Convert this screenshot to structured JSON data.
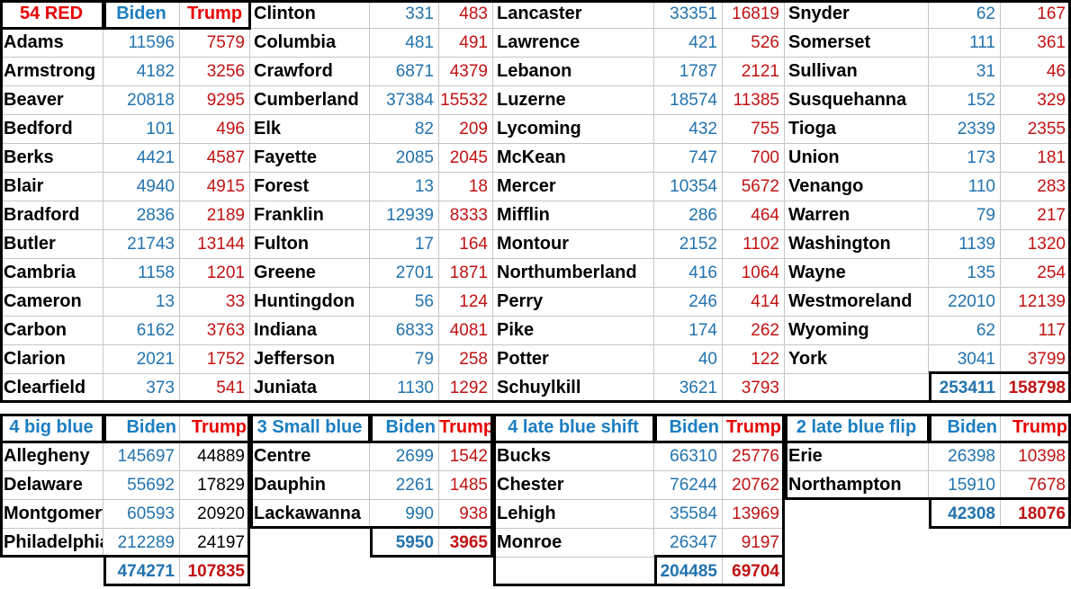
{
  "styles": {
    "accent_blue_header": "#1b7ec2",
    "accent_blue_value": "#2273ae",
    "accent_red_header": "#e80000",
    "accent_red_value": "#c11212",
    "big_blue_trump_value_color": "#000000",
    "gridline_gray": "#c6c6c6",
    "thick_border_color": "#000000"
  },
  "top_table": {
    "header": {
      "title": "54 RED",
      "biden": "Biden",
      "trump": "Trump"
    },
    "groups": [
      {
        "rows": [
          [
            "Adams",
            "11596",
            "7579"
          ],
          [
            "Armstrong",
            "4182",
            "3256"
          ],
          [
            "Beaver",
            "20818",
            "9295"
          ],
          [
            "Bedford",
            "101",
            "496"
          ],
          [
            "Berks",
            "4421",
            "4587"
          ],
          [
            "Blair",
            "4940",
            "4915"
          ],
          [
            "Bradford",
            "2836",
            "2189"
          ],
          [
            "Butler",
            "21743",
            "13144"
          ],
          [
            "Cambria",
            "1158",
            "1201"
          ],
          [
            "Cameron",
            "13",
            "33"
          ],
          [
            "Carbon",
            "6162",
            "3763"
          ],
          [
            "Clarion",
            "2021",
            "1752"
          ],
          [
            "Clearfield",
            "373",
            "541"
          ]
        ]
      },
      {
        "rows": [
          [
            "Clinton",
            "331",
            "483"
          ],
          [
            "Columbia",
            "481",
            "491"
          ],
          [
            "Crawford",
            "6871",
            "4379"
          ],
          [
            "Cumberland",
            "37384",
            "15532"
          ],
          [
            "Elk",
            "82",
            "209"
          ],
          [
            "Fayette",
            "2085",
            "2045"
          ],
          [
            "Forest",
            "13",
            "18"
          ],
          [
            "Franklin",
            "12939",
            "8333"
          ],
          [
            "Fulton",
            "17",
            "164"
          ],
          [
            "Greene",
            "2701",
            "1871"
          ],
          [
            "Huntingdon",
            "56",
            "124"
          ],
          [
            "Indiana",
            "6833",
            "4081"
          ],
          [
            "Jefferson",
            "79",
            "258"
          ],
          [
            "Juniata",
            "1130",
            "1292"
          ]
        ]
      },
      {
        "rows": [
          [
            "Lancaster",
            "33351",
            "16819"
          ],
          [
            "Lawrence",
            "421",
            "526"
          ],
          [
            "Lebanon",
            "1787",
            "2121"
          ],
          [
            "Luzerne",
            "18574",
            "11385"
          ],
          [
            "Lycoming",
            "432",
            "755"
          ],
          [
            "McKean",
            "747",
            "700"
          ],
          [
            "Mercer",
            "10354",
            "5672"
          ],
          [
            "Mifflin",
            "286",
            "464"
          ],
          [
            "Montour",
            "2152",
            "1102"
          ],
          [
            "Northumberland",
            "416",
            "1064"
          ],
          [
            "Perry",
            "246",
            "414"
          ],
          [
            "Pike",
            "174",
            "262"
          ],
          [
            "Potter",
            "40",
            "122"
          ],
          [
            "Schuylkill",
            "3621",
            "3793"
          ]
        ]
      },
      {
        "rows": [
          [
            "Snyder",
            "62",
            "167"
          ],
          [
            "Somerset",
            "111",
            "361"
          ],
          [
            "Sullivan",
            "31",
            "46"
          ],
          [
            "Susquehanna",
            "152",
            "329"
          ],
          [
            "Tioga",
            "2339",
            "2355"
          ],
          [
            "Union",
            "173",
            "181"
          ],
          [
            "Venango",
            "110",
            "283"
          ],
          [
            "Warren",
            "79",
            "217"
          ],
          [
            "Washington",
            "1139",
            "1320"
          ],
          [
            "Wayne",
            "135",
            "254"
          ],
          [
            "Westmoreland",
            "22010",
            "12139"
          ],
          [
            "Wyoming",
            "62",
            "117"
          ],
          [
            "York",
            "3041",
            "3799"
          ]
        ],
        "total": {
          "biden": "253411",
          "trump": "158798"
        }
      }
    ]
  },
  "bottom_sections": [
    {
      "title": "4 big blue",
      "biden_label": "Biden",
      "trump_label": "Trump",
      "trump_values_black": true,
      "rows": [
        [
          "Allegheny",
          "145697",
          "44889"
        ],
        [
          "Delaware",
          "55692",
          "17829"
        ],
        [
          "Montgomery",
          "60593",
          "20920"
        ],
        [
          "Philadelphia",
          "212289",
          "24197"
        ]
      ],
      "total": {
        "biden": "474271",
        "trump": "107835"
      }
    },
    {
      "title": "3 Small blue",
      "biden_label": "Biden",
      "trump_label": "Trump",
      "trump_values_black": false,
      "rows": [
        [
          "Centre",
          "2699",
          "1542"
        ],
        [
          "Dauphin",
          "2261",
          "1485"
        ],
        [
          "Lackawanna",
          "990",
          "938"
        ]
      ],
      "total": {
        "biden": "5950",
        "trump": "3965"
      }
    },
    {
      "title": "4 late blue shift",
      "biden_label": "Biden",
      "trump_label": "Trump",
      "trump_values_black": false,
      "rows": [
        [
          "Bucks",
          "66310",
          "25776"
        ],
        [
          "Chester",
          "76244",
          "20762"
        ],
        [
          "Lehigh",
          "35584",
          "13969"
        ],
        [
          "Monroe",
          "26347",
          "9197"
        ]
      ],
      "total": {
        "biden": "204485",
        "trump": "69704"
      }
    },
    {
      "title": "2 late blue flip",
      "biden_label": "Biden",
      "trump_label": "Trump",
      "trump_values_black": false,
      "rows": [
        [
          "Erie",
          "26398",
          "10398"
        ],
        [
          "Northampton",
          "15910",
          "7678"
        ]
      ],
      "total": {
        "biden": "42308",
        "trump": "18076"
      }
    }
  ]
}
